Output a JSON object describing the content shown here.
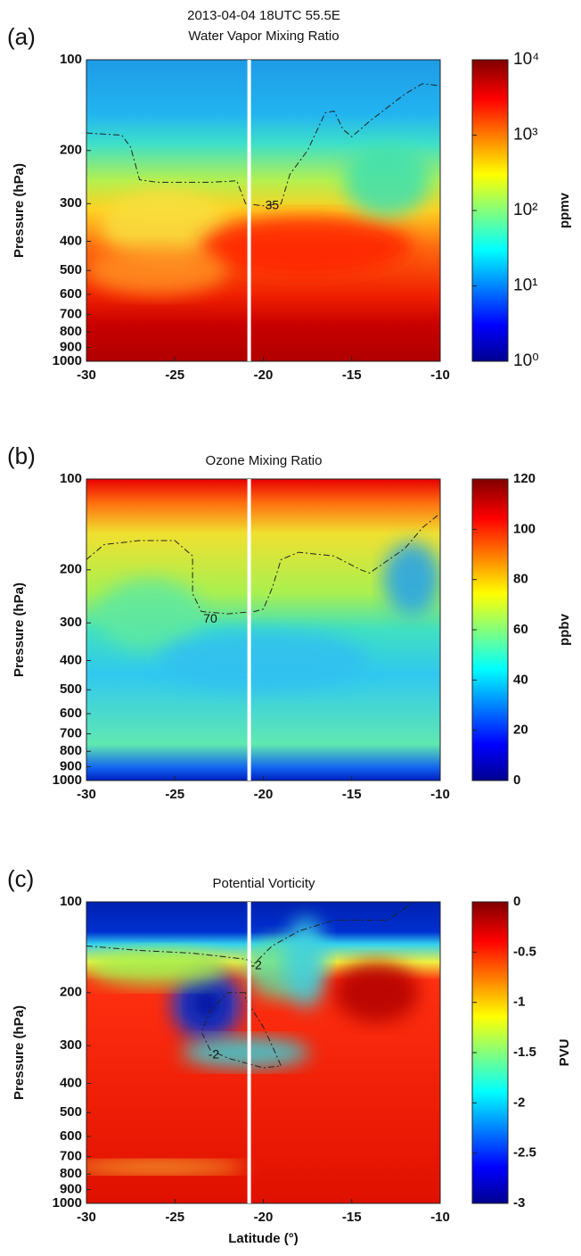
{
  "chart_data": [
    {
      "type": "contour",
      "panel_label": "(a)",
      "subtitle": "2013-04-04 18UTC 55.5E",
      "title": "Water Vapor Mixing Ratio",
      "ylabel": "Pressure (hPa)",
      "xlim": [
        -30,
        -10
      ],
      "xticks": [
        -30,
        -25,
        -20,
        -15,
        -10
      ],
      "ylim": [
        1000,
        100
      ],
      "yticks": [
        100,
        200,
        300,
        400,
        500,
        600,
        700,
        800,
        900,
        1000
      ],
      "log_y": true,
      "vline": -20.8,
      "vline_color": "#ffffff",
      "contours": [
        {
          "level": 35,
          "label_x": -19.5,
          "label_y": 305,
          "x": [
            -30,
            -28,
            -27.5,
            -27,
            -26,
            -23,
            -21.5,
            -21,
            -20,
            -19,
            -18.5,
            -17.5,
            -16.5,
            -16,
            -15.5,
            -15,
            -14,
            -12,
            -11,
            -10
          ],
          "y": [
            175,
            178,
            195,
            250,
            255,
            255,
            252,
            300,
            305,
            300,
            240,
            200,
            150,
            148,
            170,
            180,
            160,
            130,
            120,
            122
          ]
        }
      ],
      "colorbar": {
        "label": "ppmv",
        "lim": [
          1,
          10000
        ],
        "log": true,
        "colormap": "jet",
        "ticks": [
          {
            "value": 1,
            "label": "10⁰"
          },
          {
            "value": 10,
            "label": "10¹"
          },
          {
            "value": 100,
            "label": "10²"
          },
          {
            "value": 1000,
            "label": "10³"
          },
          {
            "value": 10000,
            "label": "10⁴"
          }
        ]
      }
    },
    {
      "type": "contour",
      "panel_label": "(b)",
      "title": "Ozone Mixing Ratio",
      "ylabel": "Pressure (hPa)",
      "xlim": [
        -30,
        -10
      ],
      "xticks": [
        -30,
        -25,
        -20,
        -15,
        -10
      ],
      "ylim": [
        1000,
        100
      ],
      "yticks": [
        100,
        200,
        300,
        400,
        500,
        600,
        700,
        800,
        900,
        1000
      ],
      "log_y": true,
      "vline": -20.8,
      "vline_color": "#ffffff",
      "contours": [
        {
          "level": 70,
          "label_x": -23,
          "label_y": 292,
          "x": [
            -30,
            -29,
            -27,
            -25,
            -24,
            -24,
            -23.5,
            -22,
            -20.5,
            -20,
            -19.5,
            -19,
            -18,
            -16,
            -14.5,
            -14,
            -12,
            -11,
            -10
          ],
          "y": [
            185,
            165,
            160,
            160,
            180,
            240,
            275,
            280,
            275,
            270,
            230,
            185,
            175,
            180,
            200,
            205,
            170,
            145,
            130
          ]
        }
      ],
      "colorbar": {
        "label": "ppbv",
        "lim": [
          0,
          120
        ],
        "log": false,
        "colormap": "jet",
        "ticks": [
          0,
          20,
          40,
          60,
          80,
          100,
          120
        ]
      }
    },
    {
      "type": "contour",
      "panel_label": "(c)",
      "title": "Potential Vorticity",
      "ylabel": "Pressure (hPa)",
      "xlabel": "Latitude (°)",
      "xlim": [
        -30,
        -10
      ],
      "xticks": [
        -30,
        -25,
        -20,
        -15,
        -10
      ],
      "ylim": [
        1000,
        100
      ],
      "yticks": [
        100,
        200,
        300,
        400,
        500,
        600,
        700,
        800,
        900,
        1000
      ],
      "log_y": true,
      "vline": -20.8,
      "vline_color": "#ffffff",
      "contours": [
        {
          "level": -2,
          "label_x": -20.4,
          "label_y": 163,
          "x": [
            -30,
            -27,
            -24,
            -21,
            -20.5,
            -19.5,
            -18,
            -16,
            -13,
            -12,
            -11.5
          ],
          "y": [
            140,
            145,
            148,
            155,
            160,
            140,
            125,
            115,
            115,
            105,
            100
          ]
        },
        {
          "level": -2,
          "label_x": -22.8,
          "label_y": 322,
          "x": [
            -21,
            -22,
            -23,
            -23.5,
            -23,
            -22,
            -20,
            -19,
            -19.5,
            -20,
            -21,
            -21
          ],
          "y": [
            200,
            200,
            230,
            270,
            310,
            330,
            355,
            350,
            300,
            260,
            210,
            200
          ]
        }
      ],
      "colorbar": {
        "label": "PVU",
        "lim": [
          -3,
          0
        ],
        "log": false,
        "colormap": "jet",
        "ticks": [
          0,
          -0.5,
          -1,
          -1.5,
          -2,
          -2.5,
          -3
        ]
      }
    }
  ]
}
